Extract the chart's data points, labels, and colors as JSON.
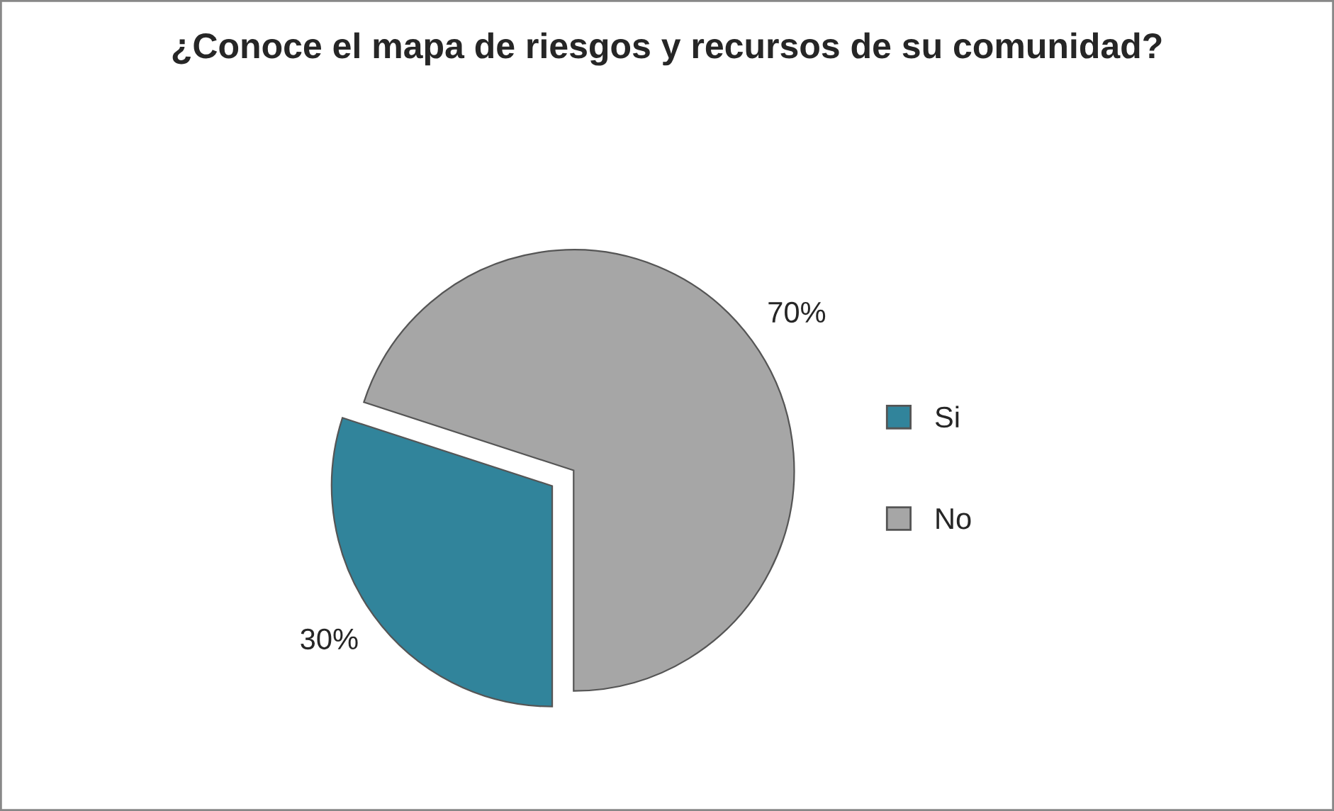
{
  "chart_data": {
    "type": "pie",
    "title": "¿Conoce el mapa de riesgos y recursos de su comunidad?",
    "categories": [
      "Si",
      "No"
    ],
    "values": [
      30,
      70
    ],
    "colors": [
      "#31849b",
      "#a6a6a6"
    ],
    "value_labels": [
      "30%",
      "70%"
    ],
    "legend": "right"
  }
}
